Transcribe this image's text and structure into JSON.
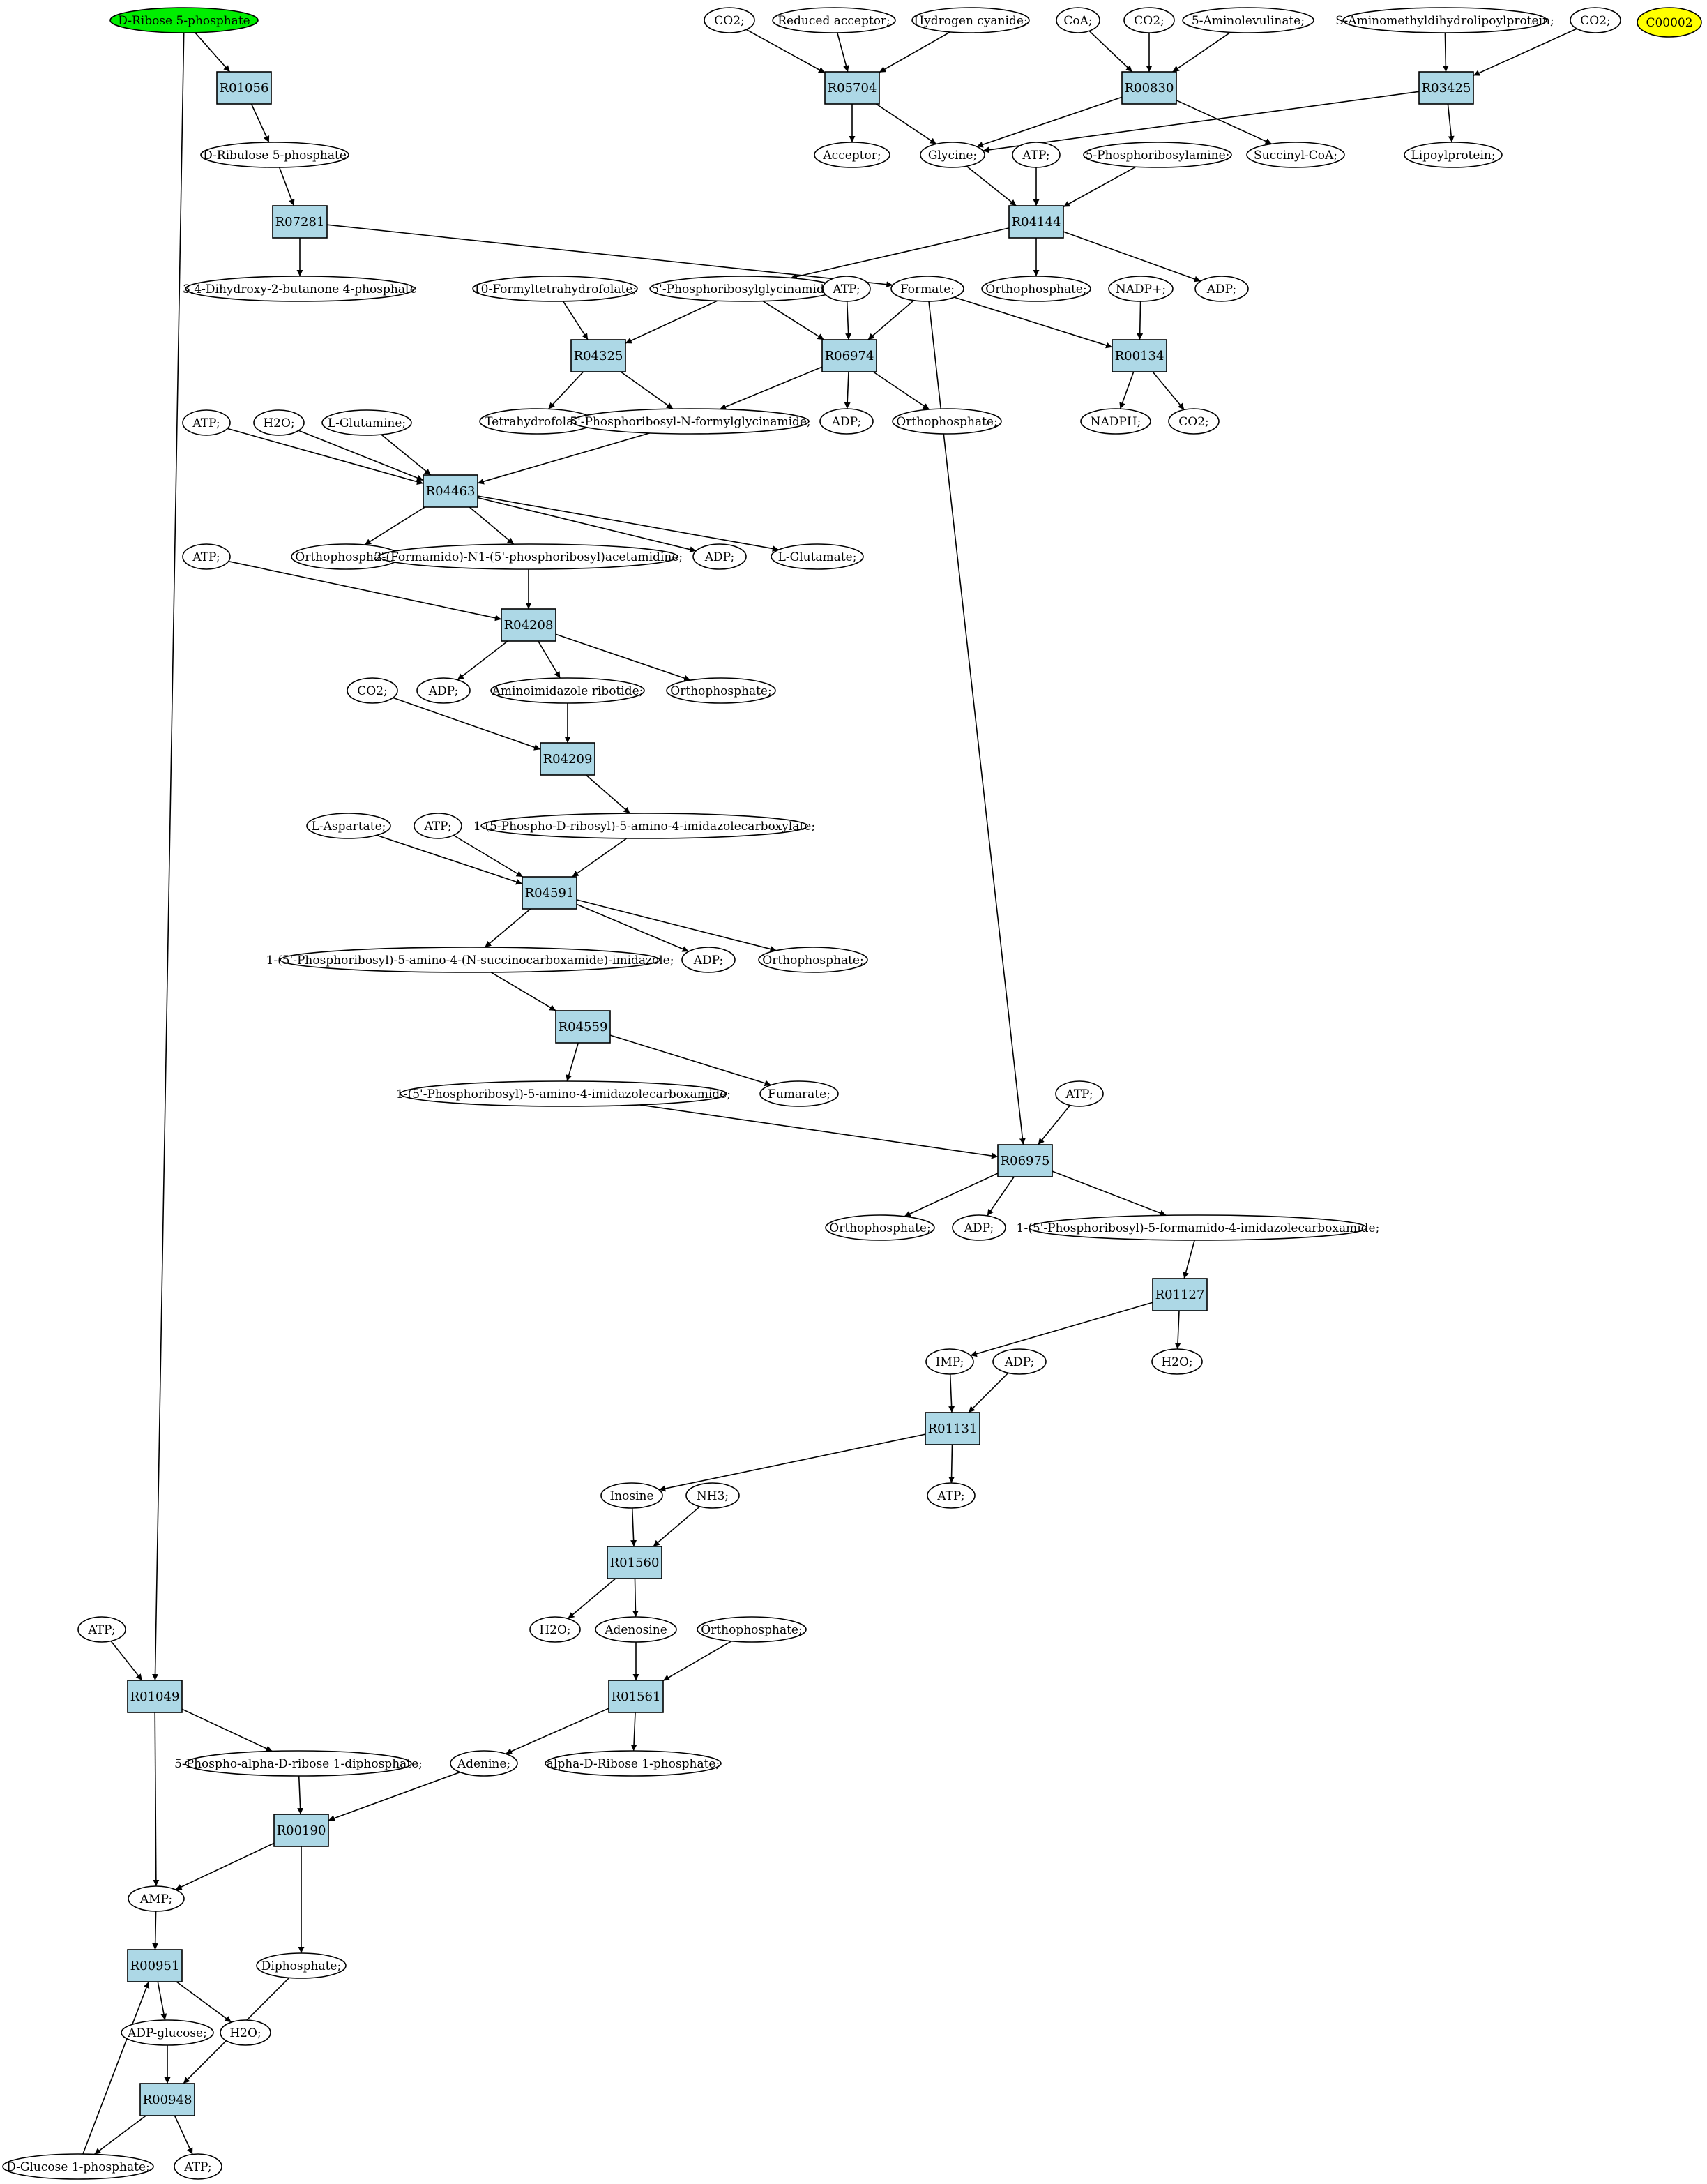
{
  "colors": {
    "reaction_fill": "#add8e6",
    "source_fill": "#00ee00",
    "target_fill": "#ffff00"
  },
  "metabolites": [
    {
      "id": "m_ribose5p",
      "label": "D-Ribose 5-phosphate",
      "fill": "#00ee00"
    },
    {
      "id": "m_co2_a",
      "label": "CO2;"
    },
    {
      "id": "m_redacc",
      "label": "Reduced acceptor;"
    },
    {
      "id": "m_hcn",
      "label": "Hydrogen cyanide;"
    },
    {
      "id": "m_coa",
      "label": "CoA;"
    },
    {
      "id": "m_co2_b",
      "label": "CO2;"
    },
    {
      "id": "m_ala",
      "label": "5-Aminolevulinate;"
    },
    {
      "id": "m_samdl",
      "label": "S-Aminomethyldihydrolipoylprotein;"
    },
    {
      "id": "m_co2_c",
      "label": "CO2;"
    },
    {
      "id": "m_c00002",
      "label": "C00002",
      "fill": "#ffff00"
    },
    {
      "id": "m_ribulose5p",
      "label": "D-Ribulose 5-phosphate"
    },
    {
      "id": "m_acceptor",
      "label": "Acceptor;"
    },
    {
      "id": "m_glycine",
      "label": "Glycine;"
    },
    {
      "id": "m_atp_1",
      "label": "ATP;"
    },
    {
      "id": "m_prpamine",
      "label": "5-Phosphoribosylamine;"
    },
    {
      "id": "m_succoa",
      "label": "Succinyl-CoA;"
    },
    {
      "id": "m_lipoprot",
      "label": "Lipoylprotein;"
    },
    {
      "id": "m_dhbp",
      "label": "3,4-Dihydroxy-2-butanone 4-phosphate"
    },
    {
      "id": "m_10fthf",
      "label": "10-Formyltetrahydrofolate;"
    },
    {
      "id": "m_gar",
      "label": "5'-Phosphoribosylglycinamide;"
    },
    {
      "id": "m_atp_2",
      "label": "ATP;"
    },
    {
      "id": "m_formate",
      "label": "Formate;"
    },
    {
      "id": "m_pi_1",
      "label": "Orthophosphate;"
    },
    {
      "id": "m_nadp",
      "label": "NADP+;"
    },
    {
      "id": "m_adp_1",
      "label": "ADP;"
    },
    {
      "id": "m_thf",
      "label": "Tetrahydrofolate;"
    },
    {
      "id": "m_fgar",
      "label": "5'-Phosphoribosyl-N-formylglycinamide;"
    },
    {
      "id": "m_adp_2",
      "label": "ADP;"
    },
    {
      "id": "m_pi_2",
      "label": "Orthophosphate;"
    },
    {
      "id": "m_nadph",
      "label": "NADPH;"
    },
    {
      "id": "m_co2_d",
      "label": "CO2;"
    },
    {
      "id": "m_atp_3",
      "label": "ATP;"
    },
    {
      "id": "m_h2o_1",
      "label": "H2O;"
    },
    {
      "id": "m_gln",
      "label": "L-Glutamine;"
    },
    {
      "id": "m_pi_3",
      "label": "Orthophosphate;"
    },
    {
      "id": "m_fgam",
      "label": "2-(Formamido)-N1-(5'-phosphoribosyl)acetamidine;"
    },
    {
      "id": "m_adp_3",
      "label": "ADP;"
    },
    {
      "id": "m_glu",
      "label": "L-Glutamate;"
    },
    {
      "id": "m_atp_4",
      "label": "ATP;"
    },
    {
      "id": "m_co2_e",
      "label": "CO2;"
    },
    {
      "id": "m_adp_4",
      "label": "ADP;"
    },
    {
      "id": "m_air",
      "label": "Aminoimidazole ribotide;"
    },
    {
      "id": "m_pi_4",
      "label": "Orthophosphate;"
    },
    {
      "id": "m_asp",
      "label": "L-Aspartate;"
    },
    {
      "id": "m_atp_5",
      "label": "ATP;"
    },
    {
      "id": "m_cair",
      "label": "1-(5-Phospho-D-ribosyl)-5-amino-4-imidazolecarboxylate;"
    },
    {
      "id": "m_saicar",
      "label": "1-(5'-Phosphoribosyl)-5-amino-4-(N-succinocarboxamide)-imidazole;"
    },
    {
      "id": "m_adp_5",
      "label": "ADP;"
    },
    {
      "id": "m_pi_5",
      "label": "Orthophosphate;"
    },
    {
      "id": "m_aicar",
      "label": "1-(5'-Phosphoribosyl)-5-amino-4-imidazolecarboxamide;"
    },
    {
      "id": "m_fumarate",
      "label": "Fumarate;"
    },
    {
      "id": "m_atp_6",
      "label": "ATP;"
    },
    {
      "id": "m_pi_6",
      "label": "Orthophosphate;"
    },
    {
      "id": "m_adp_6",
      "label": "ADP;"
    },
    {
      "id": "m_faicar",
      "label": "1-(5'-Phosphoribosyl)-5-formamido-4-imidazolecarboxamide;"
    },
    {
      "id": "m_imp",
      "label": "IMP;"
    },
    {
      "id": "m_adp_7",
      "label": "ADP;"
    },
    {
      "id": "m_h2o_2",
      "label": "H2O;"
    },
    {
      "id": "m_inosine",
      "label": "Inosine"
    },
    {
      "id": "m_nh3",
      "label": "NH3;"
    },
    {
      "id": "m_atp_7",
      "label": "ATP;"
    },
    {
      "id": "m_h2o_3",
      "label": "H2O;"
    },
    {
      "id": "m_adenosine",
      "label": "Adenosine"
    },
    {
      "id": "m_pi_7",
      "label": "Orthophosphate;"
    },
    {
      "id": "m_atp_8",
      "label": "ATP;"
    },
    {
      "id": "m_prpp",
      "label": "5-Phospho-alpha-D-ribose 1-diphosphate;"
    },
    {
      "id": "m_adenine",
      "label": "Adenine;"
    },
    {
      "id": "m_r1p",
      "label": "alpha-D-Ribose 1-phosphate;"
    },
    {
      "id": "m_amp",
      "label": "AMP;"
    },
    {
      "id": "m_ppi",
      "label": "Diphosphate;"
    },
    {
      "id": "m_adpglc",
      "label": "ADP-glucose;"
    },
    {
      "id": "m_h2o_4",
      "label": "H2O;"
    },
    {
      "id": "m_g1p",
      "label": "D-Glucose 1-phosphate;"
    },
    {
      "id": "m_atp_9",
      "label": "ATP;"
    }
  ],
  "reactions": [
    {
      "id": "r_R01056",
      "label": "R01056"
    },
    {
      "id": "r_R05704",
      "label": "R05704"
    },
    {
      "id": "r_R00830",
      "label": "R00830"
    },
    {
      "id": "r_R03425",
      "label": "R03425"
    },
    {
      "id": "r_R07281",
      "label": "R07281"
    },
    {
      "id": "r_R04144",
      "label": "R04144"
    },
    {
      "id": "r_R04325",
      "label": "R04325"
    },
    {
      "id": "r_R06974",
      "label": "R06974"
    },
    {
      "id": "r_R00134",
      "label": "R00134"
    },
    {
      "id": "r_R04463",
      "label": "R04463"
    },
    {
      "id": "r_R04208",
      "label": "R04208"
    },
    {
      "id": "r_R04209",
      "label": "R04209"
    },
    {
      "id": "r_R04591",
      "label": "R04591"
    },
    {
      "id": "r_R04559",
      "label": "R04559"
    },
    {
      "id": "r_R06975",
      "label": "R06975"
    },
    {
      "id": "r_R01127",
      "label": "R01127"
    },
    {
      "id": "r_R01131",
      "label": "R01131"
    },
    {
      "id": "r_R01560",
      "label": "R01560"
    },
    {
      "id": "r_R01561",
      "label": "R01561"
    },
    {
      "id": "r_R01049",
      "label": "R01049"
    },
    {
      "id": "r_R00190",
      "label": "R00190"
    },
    {
      "id": "r_R00951",
      "label": "R00951"
    },
    {
      "id": "r_R00948",
      "label": "R00948"
    }
  ],
  "edges": [
    [
      "m_ribose5p",
      "r_R01056"
    ],
    [
      "m_ribose5p",
      "r_R01049"
    ],
    [
      "r_R01056",
      "m_ribulose5p"
    ],
    [
      "m_ribulose5p",
      "r_R07281"
    ],
    [
      "r_R07281",
      "m_dhbp"
    ],
    [
      "r_R07281",
      "m_formate"
    ],
    [
      "m_co2_a",
      "r_R05704"
    ],
    [
      "m_redacc",
      "r_R05704"
    ],
    [
      "m_hcn",
      "r_R05704"
    ],
    [
      "r_R05704",
      "m_acceptor"
    ],
    [
      "r_R05704",
      "m_glycine"
    ],
    [
      "m_coa",
      "r_R00830"
    ],
    [
      "m_co2_b",
      "r_R00830"
    ],
    [
      "m_ala",
      "r_R00830"
    ],
    [
      "r_R00830",
      "m_glycine"
    ],
    [
      "r_R00830",
      "m_succoa"
    ],
    [
      "m_samdl",
      "r_R03425"
    ],
    [
      "m_co2_c",
      "r_R03425"
    ],
    [
      "r_R03425",
      "m_glycine"
    ],
    [
      "r_R03425",
      "m_lipoprot"
    ],
    [
      "m_glycine",
      "r_R04144"
    ],
    [
      "m_atp_1",
      "r_R04144"
    ],
    [
      "m_prpamine",
      "r_R04144"
    ],
    [
      "r_R04144",
      "m_gar"
    ],
    [
      "r_R04144",
      "m_pi_1"
    ],
    [
      "r_R04144",
      "m_adp_1"
    ],
    [
      "m_10fthf",
      "r_R04325"
    ],
    [
      "m_gar",
      "r_R04325"
    ],
    [
      "r_R04325",
      "m_thf"
    ],
    [
      "r_R04325",
      "m_fgar"
    ],
    [
      "m_gar",
      "r_R06974"
    ],
    [
      "m_atp_2",
      "r_R06974"
    ],
    [
      "m_formate",
      "r_R06974"
    ],
    [
      "r_R06974",
      "m_fgar"
    ],
    [
      "r_R06974",
      "m_adp_2"
    ],
    [
      "r_R06974",
      "m_pi_2"
    ],
    [
      "m_formate",
      "r_R00134"
    ],
    [
      "m_nadp",
      "r_R00134"
    ],
    [
      "r_R00134",
      "m_nadph"
    ],
    [
      "r_R00134",
      "m_co2_d"
    ],
    [
      "m_formate",
      "r_R06975"
    ],
    [
      "m_atp_3",
      "r_R04463"
    ],
    [
      "m_h2o_1",
      "r_R04463"
    ],
    [
      "m_gln",
      "r_R04463"
    ],
    [
      "m_fgar",
      "r_R04463"
    ],
    [
      "r_R04463",
      "m_pi_3"
    ],
    [
      "r_R04463",
      "m_fgam"
    ],
    [
      "r_R04463",
      "m_adp_3"
    ],
    [
      "r_R04463",
      "m_glu"
    ],
    [
      "m_atp_4",
      "r_R04208"
    ],
    [
      "m_fgam",
      "r_R04208"
    ],
    [
      "r_R04208",
      "m_adp_4"
    ],
    [
      "r_R04208",
      "m_air"
    ],
    [
      "r_R04208",
      "m_pi_4"
    ],
    [
      "m_co2_e",
      "r_R04209"
    ],
    [
      "m_air",
      "r_R04209"
    ],
    [
      "r_R04209",
      "m_cair"
    ],
    [
      "m_asp",
      "r_R04591"
    ],
    [
      "m_atp_5",
      "r_R04591"
    ],
    [
      "m_cair",
      "r_R04591"
    ],
    [
      "r_R04591",
      "m_saicar"
    ],
    [
      "r_R04591",
      "m_adp_5"
    ],
    [
      "r_R04591",
      "m_pi_5"
    ],
    [
      "m_saicar",
      "r_R04559"
    ],
    [
      "r_R04559",
      "m_aicar"
    ],
    [
      "r_R04559",
      "m_fumarate"
    ],
    [
      "m_aicar",
      "r_R06975"
    ],
    [
      "m_atp_6",
      "r_R06975"
    ],
    [
      "r_R06975",
      "m_pi_6"
    ],
    [
      "r_R06975",
      "m_adp_6"
    ],
    [
      "r_R06975",
      "m_faicar"
    ],
    [
      "m_faicar",
      "r_R01127"
    ],
    [
      "r_R01127",
      "m_imp"
    ],
    [
      "r_R01127",
      "m_h2o_2"
    ],
    [
      "m_imp",
      "r_R01131"
    ],
    [
      "m_adp_7",
      "r_R01131"
    ],
    [
      "r_R01131",
      "m_inosine"
    ],
    [
      "r_R01131",
      "m_atp_7"
    ],
    [
      "m_inosine",
      "r_R01560"
    ],
    [
      "m_nh3",
      "r_R01560"
    ],
    [
      "r_R01560",
      "m_h2o_3"
    ],
    [
      "r_R01560",
      "m_adenosine"
    ],
    [
      "m_adenosine",
      "r_R01561"
    ],
    [
      "m_pi_7",
      "r_R01561"
    ],
    [
      "r_R01561",
      "m_adenine"
    ],
    [
      "r_R01561",
      "m_r1p"
    ],
    [
      "m_atp_8",
      "r_R01049"
    ],
    [
      "r_R01049",
      "m_prpp"
    ],
    [
      "r_R01049",
      "m_amp"
    ],
    [
      "m_prpp",
      "r_R00190"
    ],
    [
      "m_adenine",
      "r_R00190"
    ],
    [
      "r_R00190",
      "m_amp"
    ],
    [
      "r_R00190",
      "m_ppi"
    ],
    [
      "m_amp",
      "r_R00951"
    ],
    [
      "m_g1p",
      "r_R00951"
    ],
    [
      "r_R00951",
      "m_adpglc"
    ],
    [
      "r_R00951",
      "m_h2o_4"
    ],
    [
      "m_adpglc",
      "r_R00948"
    ],
    [
      "m_ppi",
      "r_R00948"
    ],
    [
      "r_R00948",
      "m_g1p"
    ],
    [
      "r_R00948",
      "m_atp_9"
    ]
  ]
}
